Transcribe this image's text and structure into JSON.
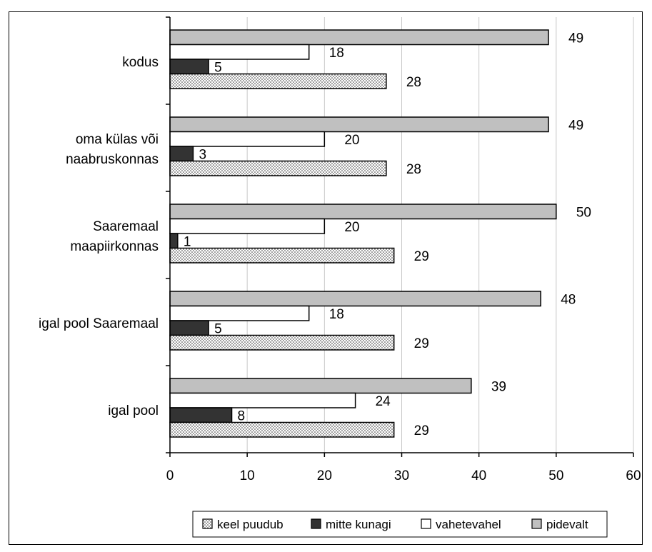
{
  "chart_data": {
    "type": "bar",
    "orientation": "horizontal",
    "categories": [
      [
        "kodus"
      ],
      [
        "oma külas või",
        "naabruskonnas"
      ],
      [
        "Saaremaal",
        "maapiirkonnas"
      ],
      [
        "igal pool Saaremaal"
      ],
      [
        "igal pool"
      ]
    ],
    "series": [
      {
        "name": "pidevalt",
        "values": [
          49,
          49,
          50,
          48,
          39
        ],
        "fill": "#c0c0c0",
        "pattern": "solid"
      },
      {
        "name": "vahetevahel",
        "values": [
          18,
          20,
          20,
          18,
          24
        ],
        "fill": "#ffffff",
        "pattern": "solid"
      },
      {
        "name": "mitte kunagi",
        "values": [
          5,
          3,
          1,
          5,
          8
        ],
        "fill": "#333333",
        "pattern": "solid"
      },
      {
        "name": "keel puudub",
        "values": [
          28,
          28,
          29,
          29,
          29
        ],
        "fill": "#ffffff",
        "pattern": "dots"
      }
    ],
    "legend_order": [
      "keel puudub",
      "mitte kunagi",
      "vahetevahel",
      "pidevalt"
    ],
    "xlim": [
      0,
      60
    ],
    "xticks": [
      0,
      10,
      20,
      30,
      40,
      50,
      60
    ],
    "grid": "vertical",
    "legend_position": "bottom"
  }
}
